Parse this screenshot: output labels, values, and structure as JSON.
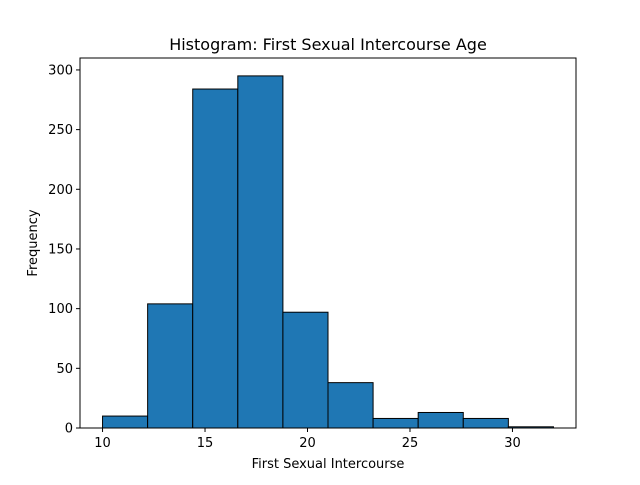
{
  "chart_data": {
    "type": "bar",
    "title": "Histogram: First Sexual Intercourse Age",
    "xlabel": "First Sexual Intercourse",
    "ylabel": "Frequency",
    "bins": [
      {
        "start": 10.0,
        "end": 12.2,
        "count": 10
      },
      {
        "start": 12.2,
        "end": 14.4,
        "count": 104
      },
      {
        "start": 14.4,
        "end": 16.6,
        "count": 284
      },
      {
        "start": 16.6,
        "end": 18.8,
        "count": 295
      },
      {
        "start": 18.8,
        "end": 21.0,
        "count": 97
      },
      {
        "start": 21.0,
        "end": 23.2,
        "count": 38
      },
      {
        "start": 23.2,
        "end": 25.4,
        "count": 8
      },
      {
        "start": 25.4,
        "end": 27.6,
        "count": 13
      },
      {
        "start": 27.6,
        "end": 29.8,
        "count": 8
      },
      {
        "start": 29.8,
        "end": 32.0,
        "count": 1
      }
    ],
    "xlim": [
      8.9,
      33.1
    ],
    "ylim": [
      0,
      310
    ],
    "xticks": [
      10,
      15,
      20,
      25,
      30
    ],
    "yticks": [
      0,
      50,
      100,
      150,
      200,
      250,
      300
    ],
    "grid": false,
    "colors": {
      "bar_fill": "#1f77b4",
      "bar_edge": "#000000"
    }
  }
}
